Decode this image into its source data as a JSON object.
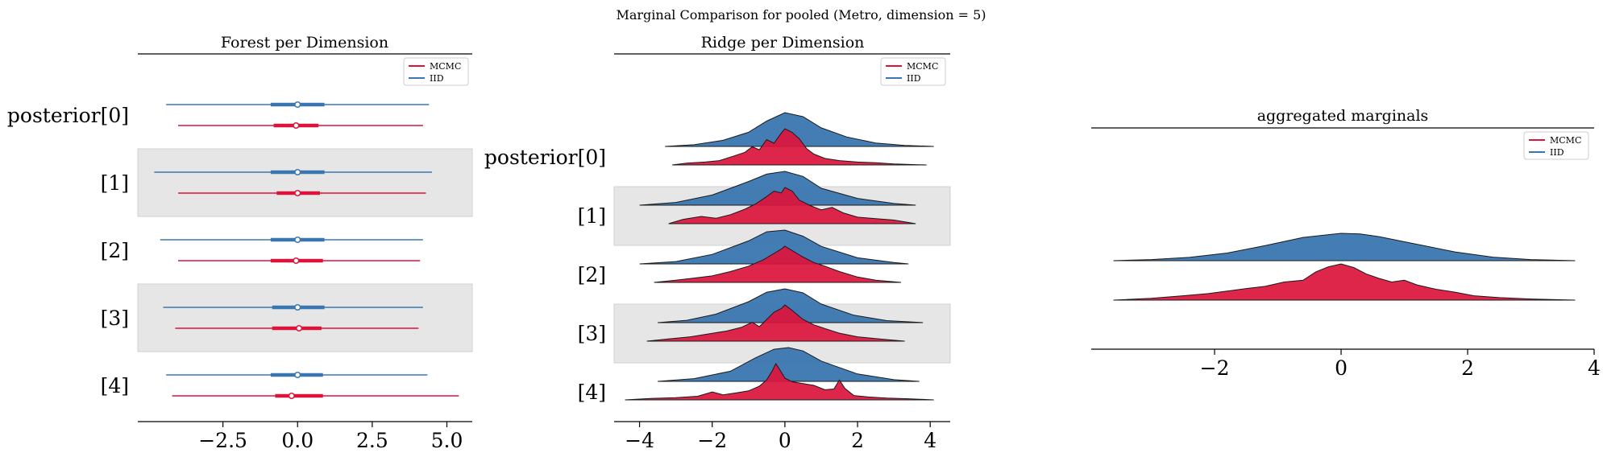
{
  "figure": {
    "suptitle": "Marginal Comparison for pooled (Metro, dimension = 5)"
  },
  "colors": {
    "mcmc": "#dc143c",
    "iid": "#3a76b0",
    "band": "#e6e6e6"
  },
  "chart_data": [
    {
      "type": "forest",
      "title": "Forest per Dimension",
      "row_labels": [
        "posterior[0]",
        "[1]",
        "[2]",
        "[3]",
        "[4]"
      ],
      "xticks": [
        "−2.5",
        "0.0",
        "2.5",
        "5.0"
      ],
      "xtick_values": [
        -2.5,
        0.0,
        2.5,
        5.0
      ],
      "xlim": [
        -5.35,
        5.85
      ],
      "legend": {
        "location": "upper right",
        "entries": [
          "MCMC",
          "IID"
        ]
      },
      "series": [
        {
          "name": "IID",
          "rows": [
            {
              "lo": -4.4,
              "q1": -0.9,
              "med": 0.0,
              "q3": 0.9,
              "hi": 4.4
            },
            {
              "lo": -4.8,
              "q1": -0.9,
              "med": 0.0,
              "q3": 0.9,
              "hi": 4.5
            },
            {
              "lo": -4.6,
              "q1": -0.9,
              "med": 0.0,
              "q3": 0.9,
              "hi": 4.2
            },
            {
              "lo": -4.5,
              "q1": -0.85,
              "med": 0.0,
              "q3": 0.9,
              "hi": 4.2
            },
            {
              "lo": -4.4,
              "q1": -0.9,
              "med": 0.0,
              "q3": 0.85,
              "hi": 4.35
            }
          ]
        },
        {
          "name": "MCMC",
          "rows": [
            {
              "lo": -4.0,
              "q1": -0.8,
              "med": -0.05,
              "q3": 0.7,
              "hi": 4.2
            },
            {
              "lo": -4.0,
              "q1": -0.7,
              "med": 0.0,
              "q3": 0.75,
              "hi": 4.3
            },
            {
              "lo": -4.0,
              "q1": -0.9,
              "med": -0.05,
              "q3": 0.85,
              "hi": 4.1
            },
            {
              "lo": -4.1,
              "q1": -0.85,
              "med": 0.05,
              "q3": 0.8,
              "hi": 4.05
            },
            {
              "lo": -4.2,
              "q1": -0.75,
              "med": -0.2,
              "q3": 0.85,
              "hi": 5.4
            }
          ]
        }
      ]
    },
    {
      "type": "ridgeline",
      "title": "Ridge per Dimension",
      "row_labels": [
        "posterior[0]",
        "[1]",
        "[2]",
        "[3]",
        "[4]"
      ],
      "xticks": [
        "−4",
        "−2",
        "0",
        "2",
        "4"
      ],
      "xtick_values": [
        -4,
        -2,
        0,
        2,
        4
      ],
      "xlim": [
        -4.7,
        4.55
      ],
      "legend": {
        "location": "upper right",
        "entries": [
          "MCMC",
          "IID"
        ]
      },
      "series": [
        {
          "name": "IID",
          "rows": [
            {
              "x": [
                -3.3,
                -2.5,
                -1.7,
                -1.0,
                -0.5,
                0.0,
                0.5,
                1.0,
                1.7,
                2.5,
                3.3,
                4.1
              ],
              "y": [
                0.0,
                0.05,
                0.18,
                0.42,
                0.75,
                1.0,
                0.88,
                0.55,
                0.28,
                0.1,
                0.03,
                0.0
              ]
            },
            {
              "x": [
                -4.0,
                -3.0,
                -2.0,
                -1.0,
                -0.5,
                0.0,
                0.5,
                1.0,
                2.0,
                3.0,
                3.6
              ],
              "y": [
                0.0,
                0.08,
                0.3,
                0.7,
                0.92,
                1.0,
                0.85,
                0.5,
                0.2,
                0.05,
                0.0
              ]
            },
            {
              "x": [
                -4.0,
                -3.0,
                -2.0,
                -1.0,
                -0.5,
                0.0,
                0.5,
                1.0,
                2.0,
                3.0,
                3.4
              ],
              "y": [
                0.0,
                0.07,
                0.28,
                0.68,
                0.95,
                1.0,
                0.82,
                0.52,
                0.18,
                0.04,
                0.0
              ]
            },
            {
              "x": [
                -3.5,
                -2.7,
                -1.9,
                -1.0,
                -0.5,
                0.0,
                0.5,
                1.0,
                1.9,
                2.8,
                3.8
              ],
              "y": [
                0.0,
                0.07,
                0.25,
                0.62,
                0.9,
                1.0,
                0.88,
                0.55,
                0.22,
                0.06,
                0.0
              ]
            },
            {
              "x": [
                -3.5,
                -2.5,
                -1.5,
                -0.8,
                -0.3,
                0.1,
                0.5,
                1.0,
                2.0,
                3.0,
                3.7
              ],
              "y": [
                0.0,
                0.08,
                0.3,
                0.7,
                0.95,
                1.0,
                0.9,
                0.6,
                0.22,
                0.05,
                0.0
              ]
            }
          ]
        },
        {
          "name": "MCMC",
          "rows": [
            {
              "x": [
                -3.1,
                -2.7,
                -2.2,
                -1.8,
                -1.4,
                -1.1,
                -0.9,
                -0.7,
                -0.5,
                -0.3,
                -0.1,
                0.0,
                0.2,
                0.4,
                0.6,
                0.8,
                1.1,
                1.5,
                2.0,
                2.5,
                3.0,
                3.9
              ],
              "y": [
                0.0,
                0.05,
                0.08,
                0.12,
                0.25,
                0.35,
                0.5,
                0.42,
                0.7,
                0.6,
                0.88,
                1.0,
                0.9,
                0.72,
                0.45,
                0.3,
                0.18,
                0.12,
                0.08,
                0.06,
                0.03,
                0.0
              ]
            },
            {
              "x": [
                -3.2,
                -2.8,
                -2.3,
                -1.9,
                -1.5,
                -1.1,
                -0.8,
                -0.5,
                -0.3,
                -0.1,
                0.0,
                0.2,
                0.4,
                0.7,
                1.0,
                1.3,
                1.6,
                2.0,
                2.5,
                3.0,
                3.6
              ],
              "y": [
                0.0,
                0.12,
                0.2,
                0.15,
                0.25,
                0.4,
                0.55,
                0.75,
                0.9,
                0.85,
                1.0,
                0.9,
                0.65,
                0.5,
                0.38,
                0.45,
                0.3,
                0.18,
                0.14,
                0.1,
                0.0
              ]
            },
            {
              "x": [
                -3.6,
                -3.0,
                -2.5,
                -2.0,
                -1.5,
                -1.0,
                -0.6,
                -0.3,
                -0.1,
                0.0,
                0.2,
                0.5,
                0.8,
                1.1,
                1.5,
                2.0,
                2.5,
                3.2
              ],
              "y": [
                0.0,
                0.06,
                0.12,
                0.18,
                0.3,
                0.45,
                0.62,
                0.8,
                0.92,
                1.0,
                0.88,
                0.7,
                0.55,
                0.45,
                0.3,
                0.15,
                0.06,
                0.0
              ]
            },
            {
              "x": [
                -3.8,
                -3.2,
                -2.6,
                -2.1,
                -1.6,
                -1.2,
                -0.9,
                -0.7,
                -0.5,
                -0.3,
                -0.1,
                0.0,
                0.2,
                0.5,
                0.8,
                1.1,
                1.5,
                2.0,
                2.6,
                3.3
              ],
              "y": [
                0.0,
                0.06,
                0.12,
                0.2,
                0.28,
                0.38,
                0.52,
                0.4,
                0.6,
                0.8,
                0.9,
                1.0,
                0.85,
                0.6,
                0.45,
                0.35,
                0.22,
                0.12,
                0.06,
                0.0
              ]
            },
            {
              "x": [
                -4.4,
                -3.7,
                -3.0,
                -2.4,
                -2.0,
                -1.7,
                -1.3,
                -1.0,
                -0.7,
                -0.5,
                -0.35,
                -0.25,
                -0.15,
                0.0,
                0.2,
                0.5,
                0.8,
                1.1,
                1.35,
                1.5,
                1.65,
                1.9,
                2.3,
                2.8,
                3.4,
                4.1
              ],
              "y": [
                0.0,
                0.04,
                0.06,
                0.1,
                0.22,
                0.14,
                0.2,
                0.25,
                0.38,
                0.55,
                0.8,
                1.0,
                0.85,
                0.6,
                0.5,
                0.45,
                0.4,
                0.28,
                0.3,
                0.55,
                0.32,
                0.12,
                0.08,
                0.05,
                0.03,
                0.0
              ]
            }
          ]
        }
      ]
    },
    {
      "type": "ridgeline",
      "title": "aggregated marginals",
      "row_labels": [],
      "xticks": [
        "−2",
        "0",
        "2",
        "4"
      ],
      "xtick_values": [
        -2,
        0,
        2,
        4
      ],
      "xlim": [
        -3.95,
        4.0
      ],
      "legend": {
        "location": "upper right",
        "entries": [
          "MCMC",
          "IID"
        ]
      },
      "series": [
        {
          "name": "IID",
          "rows": [
            {
              "x": [
                -3.6,
                -3.0,
                -2.4,
                -1.8,
                -1.2,
                -0.6,
                0.0,
                0.3,
                0.6,
                1.2,
                1.8,
                2.4,
                3.0,
                3.7
              ],
              "y": [
                0.0,
                0.04,
                0.12,
                0.28,
                0.55,
                0.85,
                1.0,
                0.98,
                0.88,
                0.6,
                0.32,
                0.13,
                0.04,
                0.0
              ]
            }
          ]
        },
        {
          "name": "MCMC",
          "rows": [
            {
              "x": [
                -3.6,
                -3.0,
                -2.5,
                -2.1,
                -1.8,
                -1.5,
                -1.2,
                -0.9,
                -0.6,
                -0.4,
                -0.2,
                0.0,
                0.2,
                0.4,
                0.6,
                0.8,
                1.0,
                1.2,
                1.5,
                1.8,
                2.1,
                2.5,
                3.0,
                3.7
              ],
              "y": [
                0.0,
                0.05,
                0.12,
                0.18,
                0.25,
                0.32,
                0.38,
                0.5,
                0.55,
                0.78,
                0.92,
                1.0,
                0.9,
                0.72,
                0.6,
                0.5,
                0.55,
                0.42,
                0.3,
                0.22,
                0.12,
                0.07,
                0.03,
                0.0
              ]
            }
          ]
        }
      ]
    }
  ]
}
